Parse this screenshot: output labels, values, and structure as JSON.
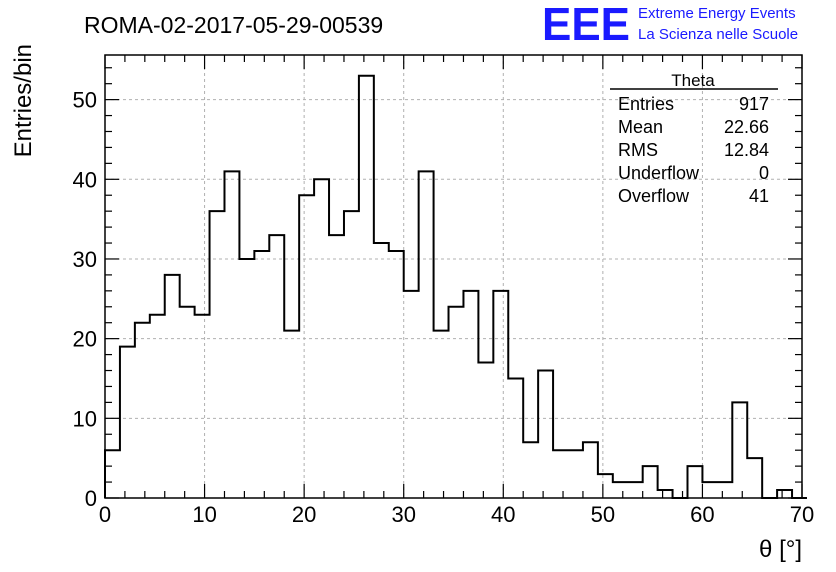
{
  "chart_data": {
    "type": "histogram",
    "title": "ROMA-02-2017-05-29-00539",
    "xlabel": "θ [°]",
    "ylabel": "Entries/bin",
    "xlim": [
      0,
      70
    ],
    "ylim": [
      0,
      55.6
    ],
    "x_ticks": [
      0,
      10,
      20,
      30,
      40,
      50,
      60,
      70
    ],
    "y_ticks": [
      0,
      10,
      20,
      30,
      40,
      50
    ],
    "grid": true,
    "bin_width": 1.5,
    "bin_start": 0,
    "values": [
      6,
      19,
      22,
      23,
      28,
      24,
      23,
      36,
      41,
      30,
      31,
      33,
      21,
      38,
      40,
      33,
      36,
      53,
      32,
      31,
      26,
      41,
      21,
      24,
      26,
      17,
      26,
      15,
      7,
      16,
      6,
      6,
      7,
      3,
      2,
      2,
      4,
      1,
      0,
      4,
      2,
      2,
      12,
      5,
      0,
      1,
      0
    ],
    "stats_box": {
      "title": "Theta",
      "rows": [
        {
          "label": "Entries",
          "value": "917"
        },
        {
          "label": "Mean",
          "value": "22.66"
        },
        {
          "label": "RMS",
          "value": "12.84"
        },
        {
          "label": "Underflow",
          "value": "0"
        },
        {
          "label": "Overflow",
          "value": "41"
        }
      ]
    }
  },
  "logo": {
    "text": "EEE",
    "line1": "Extreme Energy Events",
    "line2": "La Scienza nelle Scuole",
    "color": "#1a1aff"
  },
  "colors": {
    "line": "#000000",
    "grid": "#b0b0b0"
  }
}
